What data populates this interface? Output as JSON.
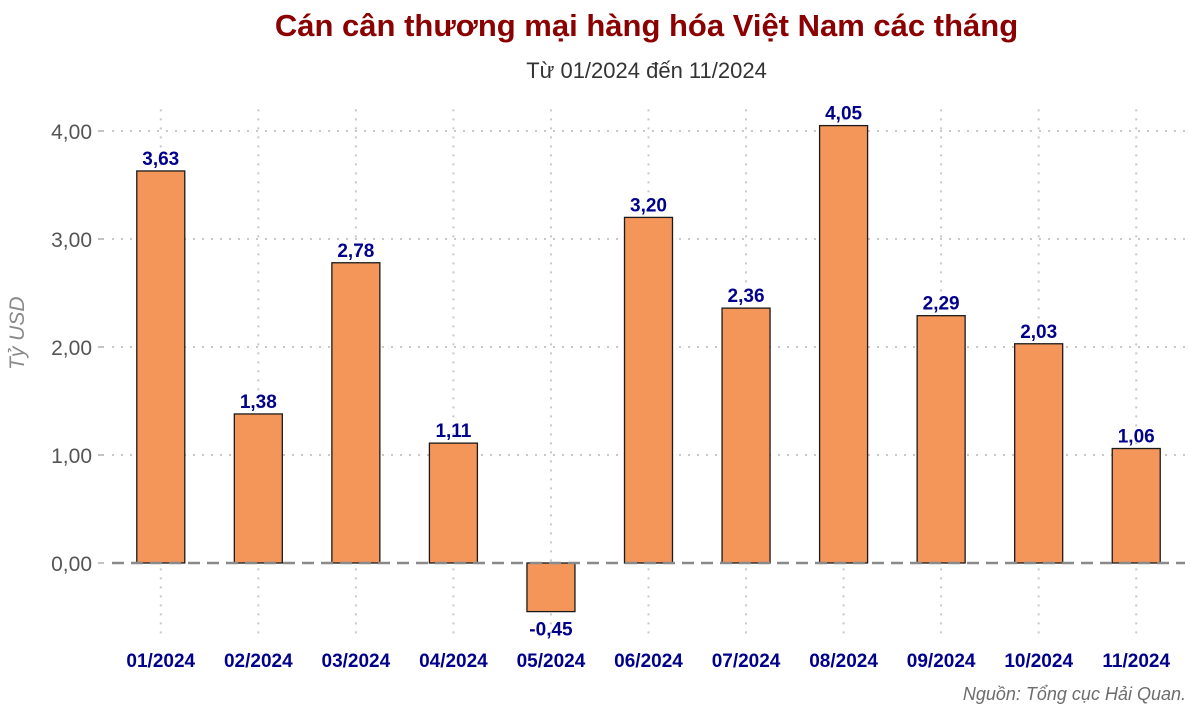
{
  "chart_data": {
    "type": "bar",
    "title": "Cán cân thương mại hàng hóa Việt Nam các tháng",
    "subtitle": "Từ 01/2024 đến 11/2024",
    "xlabel": "",
    "ylabel": "Tỷ USD",
    "categories": [
      "01/2024",
      "02/2024",
      "03/2024",
      "04/2024",
      "05/2024",
      "06/2024",
      "07/2024",
      "08/2024",
      "09/2024",
      "10/2024",
      "11/2024"
    ],
    "values": [
      3.63,
      1.38,
      2.78,
      1.11,
      -0.45,
      3.2,
      2.36,
      4.05,
      2.29,
      2.03,
      1.06
    ],
    "value_labels": [
      "3,63",
      "1,38",
      "2,78",
      "1,11",
      "-0,45",
      "3,20",
      "2,36",
      "4,05",
      "2,29",
      "2,03",
      "1,06"
    ],
    "yticks": [
      0,
      1,
      2,
      3,
      4
    ],
    "ytick_labels": [
      "0,00",
      "1,00",
      "2,00",
      "3,00",
      "4,00"
    ],
    "ylim": [
      -0.68,
      4.2
    ],
    "grid": true,
    "zero_line": "dashed",
    "source": "Nguồn: Tổng cục Hải Quan.",
    "colors": {
      "bar_fill": "#f4965a",
      "bar_stroke": "#1a1a1a",
      "title": "#8b0000",
      "value_label": "#00008b",
      "category_label": "#00008b",
      "tick_label": "#555555",
      "grid": "#c8c8c8",
      "zero_line": "#8a8a8a"
    }
  }
}
